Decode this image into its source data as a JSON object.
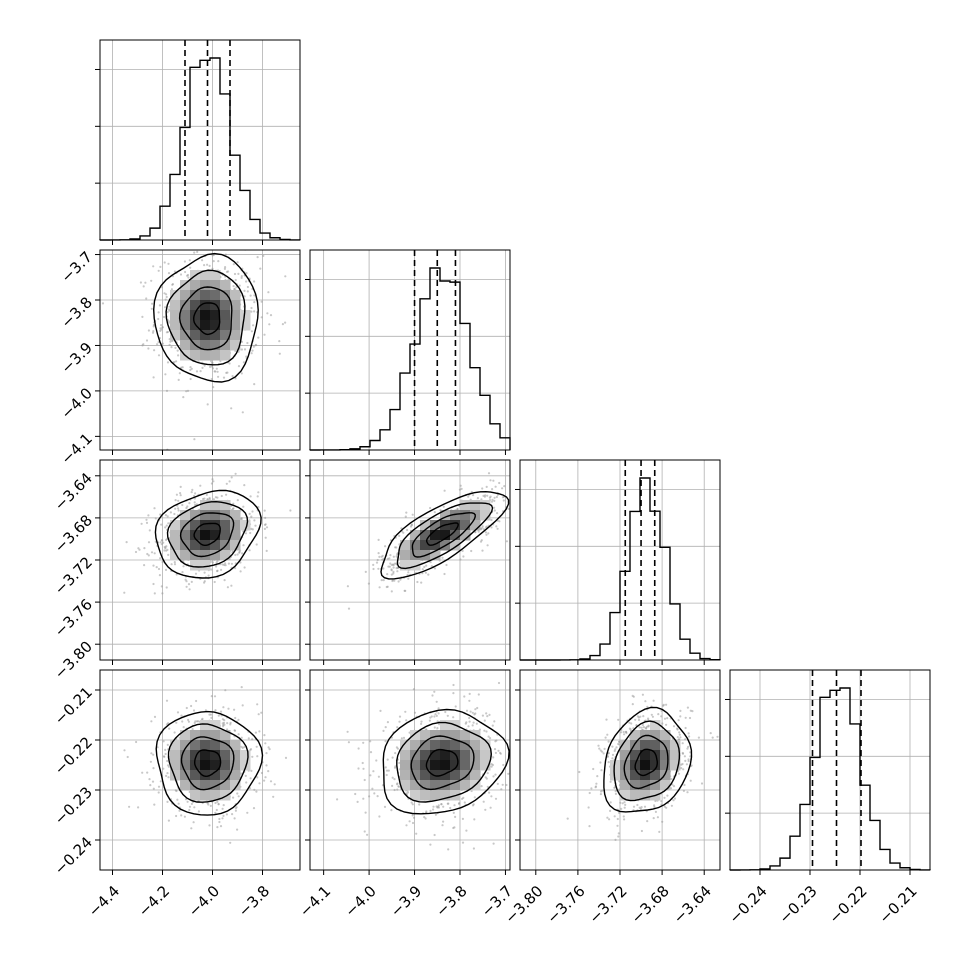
{
  "chart_data": {
    "type": "corner",
    "parameters": [
      {
        "index": 0,
        "range": [
          -4.45,
          -3.65
        ],
        "ticks": [
          -4.4,
          -4.2,
          -4.0,
          -3.8
        ],
        "tick_labels": [
          "−4.4",
          "−4.2",
          "−4.0",
          "−3.8"
        ],
        "mean": -4.02,
        "sd": 0.09,
        "quantiles": [
          -4.11,
          -4.02,
          -3.93
        ]
      },
      {
        "index": 1,
        "range": [
          -4.13,
          -3.69
        ],
        "ticks": [
          -4.1,
          -4.0,
          -3.9,
          -3.8,
          -3.7
        ],
        "tick_labels": [
          "−4.1",
          "−4.0",
          "−3.9",
          "−3.8",
          "−3.7"
        ],
        "mean": -3.84,
        "sd": 0.06,
        "quantiles": [
          -3.9,
          -3.85,
          -3.81
        ]
      },
      {
        "index": 2,
        "range": [
          -3.815,
          -3.625
        ],
        "ticks": [
          -3.8,
          -3.76,
          -3.72,
          -3.68,
          -3.64
        ],
        "tick_labels": [
          "−3.80",
          "−3.76",
          "−3.72",
          "−3.68",
          "−3.64"
        ],
        "mean": -3.695,
        "sd": 0.018,
        "quantiles": [
          -3.715,
          -3.7,
          -3.687
        ]
      },
      {
        "index": 3,
        "range": [
          -0.246,
          -0.206
        ],
        "ticks": [
          -0.24,
          -0.23,
          -0.22,
          -0.21
        ],
        "tick_labels": [
          "−0.24",
          "−0.23",
          "−0.22",
          "−0.21"
        ],
        "mean": -0.2245,
        "sd": 0.0045,
        "quantiles": [
          -0.2295,
          -0.2247,
          -0.2198
        ]
      }
    ],
    "correlations": {
      "1-0": 0.0,
      "2-0": 0.2,
      "2-1": 0.75,
      "3-0": 0.0,
      "3-1": 0.15,
      "3-2": 0.2
    },
    "grid": true,
    "line_color": "#000000",
    "point_color": "#9a9a9a",
    "contour_levels": [
      0.5,
      1.0,
      1.5,
      2.0
    ]
  }
}
